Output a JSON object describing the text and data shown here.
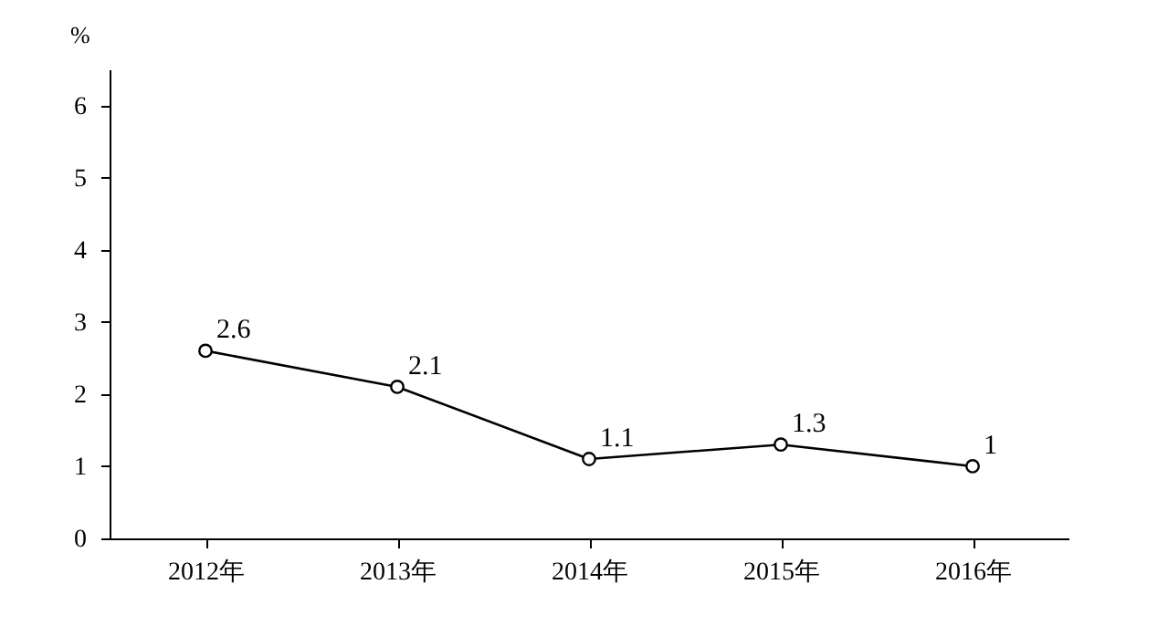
{
  "chart_data": {
    "type": "line",
    "ylabel": "%",
    "categories": [
      "2012年",
      "2013年",
      "2014年",
      "2015年",
      "2016年"
    ],
    "series": [
      {
        "color": "#000000",
        "values": [
          2.6,
          2.1,
          1.1,
          1.3,
          1
        ]
      }
    ],
    "ylim": [
      0,
      6.5
    ],
    "yticks": [
      0,
      1,
      2,
      3,
      4,
      5,
      6
    ],
    "marker": "circle",
    "line_style": "solid",
    "data_labels": true,
    "grid": false,
    "legend": false
  }
}
